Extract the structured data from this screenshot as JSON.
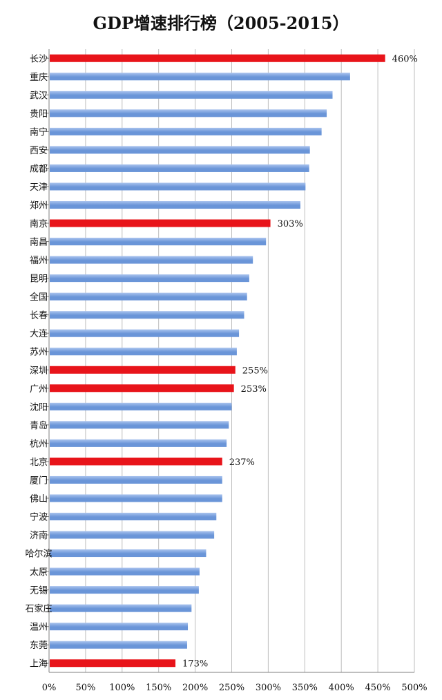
{
  "chart_data": {
    "type": "bar",
    "orientation": "horizontal",
    "title": "GDP增速排行榜（2005-2015）",
    "categories": [
      "长沙",
      "重庆",
      "武汉",
      "贵阳",
      "南宁",
      "西安",
      "成都",
      "天津",
      "郑州",
      "南京",
      "南昌",
      "福州",
      "昆明",
      "全国",
      "长春",
      "大连",
      "苏州",
      "深圳",
      "广州",
      "沈阳",
      "青岛",
      "杭州",
      "北京",
      "厦门",
      "佛山",
      "宁波",
      "济南",
      "哈尔滨",
      "太原",
      "无锡",
      "石家庄",
      "温州",
      "东莞",
      "上海"
    ],
    "values": [
      460,
      412,
      388,
      380,
      373,
      357,
      356,
      351,
      344,
      303,
      297,
      279,
      274,
      271,
      267,
      260,
      257,
      255,
      253,
      250,
      246,
      243,
      237,
      237,
      237,
      229,
      226,
      215,
      206,
      205,
      195,
      190,
      189,
      173
    ],
    "highlighted": [
      "长沙",
      "南京",
      "深圳",
      "广州",
      "北京",
      "上海"
    ],
    "data_labels": {
      "长沙": "460%",
      "南京": "303%",
      "深圳": "255%",
      "广州": "253%",
      "北京": "237%",
      "上海": "173%"
    },
    "xlim": [
      0,
      500
    ],
    "x_ticks": [
      "0%",
      "50%",
      "100%",
      "150%",
      "200%",
      "250%",
      "300%",
      "350%",
      "400%",
      "450%",
      "500%"
    ],
    "grid": true,
    "legend": "none",
    "colors": {
      "highlight": "#e8141a",
      "normal": "#6a95d8",
      "normal_light": "#a9c3ee",
      "grid": "#bdbdbd",
      "axis": "#7f7f7f"
    }
  }
}
